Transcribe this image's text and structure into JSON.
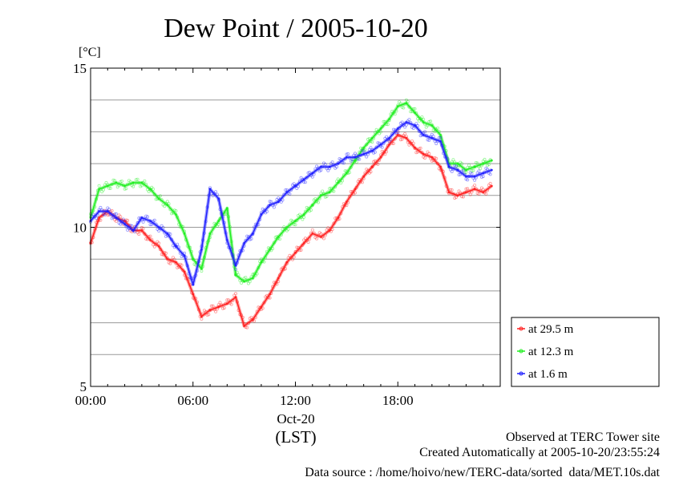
{
  "chart_data": {
    "type": "line",
    "title": "Dew Point / 2005-10-20",
    "ylabel": "[°C]",
    "xlabel": "(LST)",
    "date_label": "Oct-20",
    "ylim": [
      5,
      15
    ],
    "xlim": [
      0,
      24
    ],
    "y_ticks": [
      {
        "value": 5,
        "label": "5"
      },
      {
        "value": 10,
        "label": "10"
      },
      {
        "value": 15,
        "label": "15"
      }
    ],
    "x_ticks": [
      {
        "value": 0,
        "label": "00:00"
      },
      {
        "value": 6,
        "label": "06:00"
      },
      {
        "value": 12,
        "label": "12:00"
      },
      {
        "value": 18,
        "label": "18:00"
      }
    ],
    "grid": true,
    "legend_position": "bottom-right outside",
    "series": [
      {
        "name": "at 29.5 m",
        "color": "#ff2020",
        "x": [
          0,
          0.5,
          1,
          1.5,
          2,
          2.5,
          3,
          3.5,
          4,
          4.5,
          5,
          5.5,
          6,
          6.5,
          7,
          7.5,
          8,
          8.5,
          9,
          9.5,
          10,
          10.5,
          11,
          11.5,
          12,
          12.5,
          13,
          13.5,
          14,
          14.5,
          15,
          15.5,
          16,
          16.5,
          17,
          17.5,
          18,
          18.5,
          19,
          19.5,
          20,
          20.5,
          21,
          21.5,
          22,
          22.5,
          23,
          23.5
        ],
        "y": [
          9.5,
          10.3,
          10.5,
          10.3,
          10.2,
          9.9,
          9.9,
          9.6,
          9.4,
          9.0,
          8.9,
          8.6,
          7.9,
          7.2,
          7.4,
          7.5,
          7.6,
          7.8,
          6.9,
          7.1,
          7.5,
          7.9,
          8.4,
          8.9,
          9.2,
          9.5,
          9.8,
          9.7,
          9.9,
          10.3,
          10.8,
          11.2,
          11.6,
          11.9,
          12.2,
          12.6,
          12.9,
          12.8,
          12.5,
          12.3,
          12.2,
          11.9,
          11.1,
          11.0,
          11.1,
          11.2,
          11.1,
          11.3
        ]
      },
      {
        "name": "at 12.3 m",
        "color": "#20ee20",
        "x": [
          0,
          0.5,
          1,
          1.5,
          2,
          2.5,
          3,
          3.5,
          4,
          4.5,
          5,
          5.5,
          6,
          6.5,
          7,
          7.5,
          8,
          8.5,
          9,
          9.5,
          10,
          10.5,
          11,
          11.5,
          12,
          12.5,
          13,
          13.5,
          14,
          14.5,
          15,
          15.5,
          16,
          16.5,
          17,
          17.5,
          18,
          18.5,
          19,
          19.5,
          20,
          20.5,
          21,
          21.5,
          22,
          22.5,
          23,
          23.5
        ],
        "y": [
          10.3,
          11.2,
          11.3,
          11.4,
          11.3,
          11.4,
          11.4,
          11.2,
          10.9,
          10.7,
          10.4,
          9.8,
          9.0,
          8.7,
          9.8,
          10.2,
          10.6,
          8.5,
          8.3,
          8.4,
          8.9,
          9.3,
          9.7,
          10.0,
          10.2,
          10.4,
          10.7,
          11.0,
          11.1,
          11.4,
          11.7,
          12.1,
          12.5,
          12.8,
          13.1,
          13.4,
          13.8,
          13.9,
          13.6,
          13.3,
          13.2,
          12.9,
          12.0,
          12.0,
          11.8,
          11.9,
          12.0,
          12.1
        ]
      },
      {
        "name": "at 1.6 m",
        "color": "#2020ff",
        "x": [
          0,
          0.5,
          1,
          1.5,
          2,
          2.5,
          3,
          3.5,
          4,
          4.5,
          5,
          5.5,
          6,
          6.5,
          7,
          7.5,
          8,
          8.5,
          9,
          9.5,
          10,
          10.5,
          11,
          11.5,
          12,
          12.5,
          13,
          13.5,
          14,
          14.5,
          15,
          15.5,
          16,
          16.5,
          17,
          17.5,
          18,
          18.5,
          19,
          19.5,
          20,
          20.5,
          21,
          21.5,
          22,
          22.5,
          23,
          23.5
        ],
        "y": [
          10.2,
          10.5,
          10.5,
          10.3,
          10.1,
          9.9,
          10.3,
          10.2,
          10.0,
          9.8,
          9.4,
          9.1,
          8.2,
          9.3,
          11.2,
          10.9,
          9.6,
          8.8,
          9.5,
          9.8,
          10.4,
          10.7,
          10.8,
          11.1,
          11.3,
          11.5,
          11.7,
          11.9,
          11.9,
          12.0,
          12.2,
          12.2,
          12.3,
          12.4,
          12.6,
          12.8,
          13.1,
          13.3,
          13.2,
          12.9,
          12.8,
          12.7,
          11.9,
          11.8,
          11.6,
          11.6,
          11.7,
          11.8
        ]
      }
    ]
  },
  "footer": {
    "site": "Observed at TERC Tower site",
    "created": "Created Automatically at 2005-10-20/23:55:24",
    "source": "Data source : /home/hoivo/new/TERC-data/sorted_data/MET.10s.dat"
  }
}
